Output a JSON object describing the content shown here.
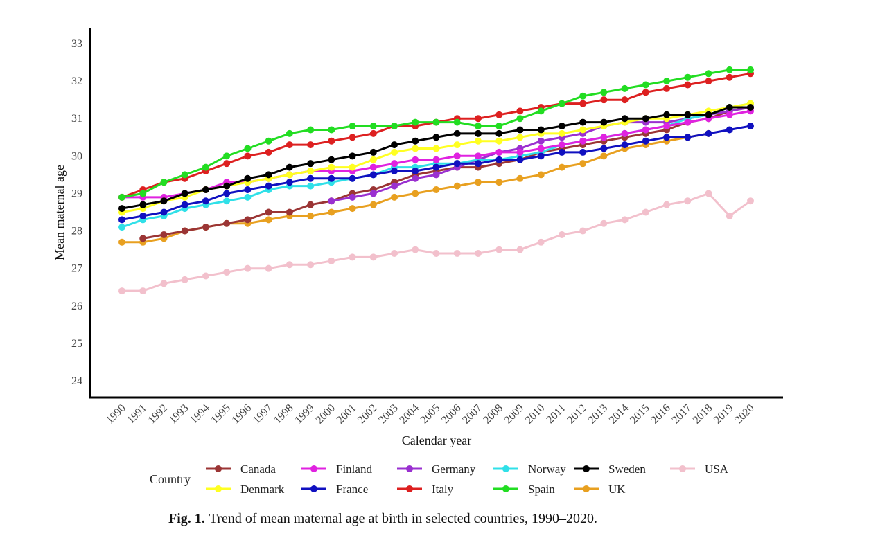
{
  "chart_data": {
    "type": "line",
    "title": "",
    "xlabel": "Calendar year",
    "ylabel": "Mean maternal age",
    "ylim": [
      23.6,
      33.4
    ],
    "yticks": [
      24,
      25,
      26,
      27,
      28,
      29,
      30,
      31,
      32,
      33
    ],
    "x": [
      1990,
      1991,
      1992,
      1993,
      1994,
      1995,
      1996,
      1997,
      1998,
      1999,
      2000,
      2001,
      2002,
      2003,
      2004,
      2005,
      2006,
      2007,
      2008,
      2009,
      2010,
      2011,
      2012,
      2013,
      2014,
      2015,
      2016,
      2017,
      2018,
      2019,
      2020
    ],
    "grid": false,
    "legend": {
      "title": "Country",
      "placement": "bottom"
    },
    "series": [
      {
        "name": "Canada",
        "color": "#9b3535",
        "values": [
          null,
          27.8,
          27.9,
          28.0,
          28.1,
          28.2,
          28.3,
          28.5,
          28.5,
          28.7,
          28.8,
          29.0,
          29.1,
          29.3,
          29.5,
          29.6,
          29.7,
          29.7,
          29.8,
          29.9,
          30.1,
          30.2,
          30.3,
          30.4,
          30.5,
          30.6,
          30.7,
          30.9,
          31.0,
          31.2,
          31.3
        ]
      },
      {
        "name": "Denmark",
        "color": "#ffff22",
        "values": [
          28.5,
          28.6,
          28.8,
          28.9,
          29.1,
          29.2,
          29.3,
          29.4,
          29.5,
          29.6,
          29.7,
          29.7,
          29.9,
          30.1,
          30.2,
          30.2,
          30.3,
          30.4,
          30.4,
          30.5,
          30.6,
          30.6,
          30.7,
          30.8,
          30.9,
          31.0,
          31.0,
          31.1,
          31.2,
          31.3,
          31.4
        ]
      },
      {
        "name": "Finland",
        "color": "#e022e0",
        "values": [
          28.9,
          28.9,
          28.9,
          29.0,
          29.1,
          29.3,
          29.3,
          29.4,
          29.5,
          29.6,
          29.6,
          29.6,
          29.7,
          29.8,
          29.9,
          29.9,
          30.0,
          30.0,
          30.1,
          30.1,
          30.2,
          30.3,
          30.4,
          30.5,
          30.6,
          30.7,
          30.8,
          30.9,
          31.0,
          31.1,
          31.2
        ]
      },
      {
        "name": "France",
        "color": "#1010c0",
        "values": [
          28.3,
          28.4,
          28.5,
          28.7,
          28.8,
          29.0,
          29.1,
          29.2,
          29.3,
          29.4,
          29.4,
          29.4,
          29.5,
          29.6,
          29.6,
          29.7,
          29.8,
          29.8,
          29.9,
          29.9,
          30.0,
          30.1,
          30.1,
          30.2,
          30.3,
          30.4,
          30.5,
          30.5,
          30.6,
          30.7,
          30.8
        ]
      },
      {
        "name": "Germany",
        "color": "#9a30d0",
        "values": [
          null,
          null,
          null,
          null,
          null,
          null,
          null,
          null,
          null,
          null,
          28.8,
          28.9,
          29.0,
          29.2,
          29.4,
          29.5,
          29.7,
          29.9,
          30.1,
          30.2,
          30.4,
          30.5,
          30.6,
          30.8,
          30.9,
          30.9,
          30.9,
          31.0,
          31.1,
          31.2,
          31.3
        ]
      },
      {
        "name": "Italy",
        "color": "#dd2020",
        "values": [
          28.9,
          29.1,
          29.3,
          29.4,
          29.6,
          29.8,
          30.0,
          30.1,
          30.3,
          30.3,
          30.4,
          30.5,
          30.6,
          30.8,
          30.8,
          30.9,
          31.0,
          31.0,
          31.1,
          31.2,
          31.3,
          31.4,
          31.4,
          31.5,
          31.5,
          31.7,
          31.8,
          31.9,
          32.0,
          32.1,
          32.2
        ]
      },
      {
        "name": "Norway",
        "color": "#30e0e8",
        "values": [
          28.1,
          28.3,
          28.4,
          28.6,
          28.7,
          28.8,
          28.9,
          29.1,
          29.2,
          29.2,
          29.3,
          29.4,
          29.5,
          29.7,
          29.7,
          29.8,
          29.8,
          29.9,
          29.9,
          30.0,
          30.1,
          30.3,
          30.4,
          30.5,
          30.6,
          30.7,
          30.8,
          31.0,
          31.1,
          31.3,
          31.4
        ]
      },
      {
        "name": "Spain",
        "color": "#22dd22",
        "values": [
          28.9,
          29.0,
          29.3,
          29.5,
          29.7,
          30.0,
          30.2,
          30.4,
          30.6,
          30.7,
          30.7,
          30.8,
          30.8,
          30.8,
          30.9,
          30.9,
          30.9,
          30.8,
          30.8,
          31.0,
          31.2,
          31.4,
          31.6,
          31.7,
          31.8,
          31.9,
          32.0,
          32.1,
          32.2,
          32.3,
          32.3
        ]
      },
      {
        "name": "Sweden",
        "color": "#000000",
        "values": [
          28.6,
          28.7,
          28.8,
          29.0,
          29.1,
          29.2,
          29.4,
          29.5,
          29.7,
          29.8,
          29.9,
          30.0,
          30.1,
          30.3,
          30.4,
          30.5,
          30.6,
          30.6,
          30.6,
          30.7,
          30.7,
          30.8,
          30.9,
          30.9,
          31.0,
          31.0,
          31.1,
          31.1,
          31.1,
          31.3,
          31.3
        ]
      },
      {
        "name": "UK",
        "color": "#e8a020",
        "values": [
          27.7,
          27.7,
          27.8,
          28.0,
          28.1,
          28.2,
          28.2,
          28.3,
          28.4,
          28.4,
          28.5,
          28.6,
          28.7,
          28.9,
          29.0,
          29.1,
          29.2,
          29.3,
          29.3,
          29.4,
          29.5,
          29.7,
          29.8,
          30.0,
          30.2,
          30.3,
          30.4,
          30.5,
          30.6,
          null,
          null
        ]
      },
      {
        "name": "USA",
        "color": "#f2c0cc",
        "values": [
          26.4,
          26.4,
          26.6,
          26.7,
          26.8,
          26.9,
          27.0,
          27.0,
          27.1,
          27.1,
          27.2,
          27.3,
          27.3,
          27.4,
          27.5,
          27.4,
          27.4,
          27.4,
          27.5,
          27.5,
          27.7,
          27.9,
          28.0,
          28.2,
          28.3,
          28.5,
          28.7,
          28.8,
          29.0,
          28.4,
          28.8
        ]
      }
    ],
    "legend_rows": [
      [
        "Canada",
        "Finland",
        "Germany",
        "Norway",
        "Sweden",
        "USA"
      ],
      [
        "Denmark",
        "France",
        "Italy",
        "Spain",
        "UK"
      ]
    ]
  },
  "caption": {
    "label": "Fig. 1.",
    "text": "Trend of mean maternal age at birth in selected countries, 1990–2020."
  }
}
